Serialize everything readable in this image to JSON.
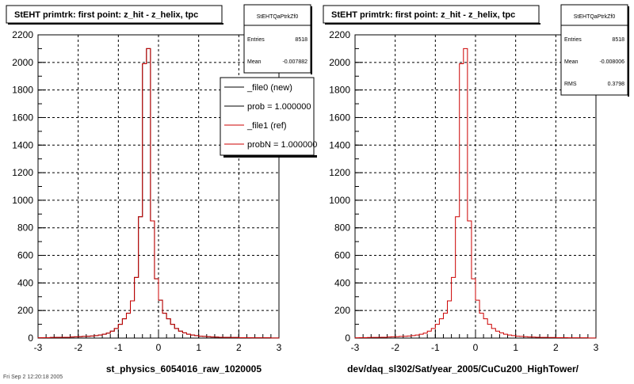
{
  "pads": [
    {
      "title": "StEHT primtrk: first point: z_hit - z_helix, tpc",
      "stats": {
        "name": "StEHTQaPtrkZf0",
        "rows": [
          {
            "label": "Entries",
            "value": "8518"
          },
          {
            "label": "Mean",
            "value": "-0.007882"
          }
        ]
      },
      "legend": [
        {
          "label": "_file0 (new)",
          "color": "#000000"
        },
        {
          "label": "prob = 1.000000",
          "color": "#000000"
        },
        {
          "label": "_file1 (ref)",
          "color": "#cc0000"
        },
        {
          "label": "probN = 1.000000",
          "color": "#cc0000"
        }
      ],
      "xtitle": "st_physics_6054016_raw_1020005"
    },
    {
      "title": "StEHT primtrk: first point: z_hit - z_helix, tpc",
      "stats": {
        "name": "StEHTQaPtrkZf0",
        "rows": [
          {
            "label": "Entries",
            "value": "8518"
          },
          {
            "label": "Mean",
            "value": "-0.008006"
          },
          {
            "label": "RMS",
            "value": "0.3798"
          }
        ]
      },
      "legend": [],
      "xtitle": "dev/daq_sl302/Sat/year_2005/CuCu200_HighTower/"
    }
  ],
  "timestamp": "Fri Sep 2 12:20:18 2005",
  "chart_data": [
    {
      "type": "histogram",
      "title": "StEHT primtrk: first point: z_hit - z_helix, tpc",
      "xlabel": "st_physics_6054016_raw_1020005",
      "ylabel": "",
      "xlim": [
        -3,
        3
      ],
      "ylim": [
        0,
        2200
      ],
      "xticks": [
        "-3",
        "-2",
        "-1",
        "0",
        "1",
        "2",
        "3"
      ],
      "yticks": [
        "0",
        "200",
        "400",
        "600",
        "800",
        "1000",
        "1200",
        "1400",
        "1600",
        "1800",
        "2000",
        "2200"
      ],
      "grid": true,
      "legend_position": "top-right",
      "bin_edges": [
        -3.0,
        -2.9,
        -2.8,
        -2.7,
        -2.6,
        -2.5,
        -2.4,
        -2.3,
        -2.2,
        -2.1,
        -2.0,
        -1.9,
        -1.8,
        -1.7,
        -1.6,
        -1.5,
        -1.4,
        -1.3,
        -1.2,
        -1.1,
        -1.0,
        -0.9,
        -0.8,
        -0.7,
        -0.6,
        -0.5,
        -0.4,
        -0.3,
        -0.2,
        -0.1,
        0.0,
        0.1,
        0.2,
        0.3,
        0.4,
        0.5,
        0.6,
        0.7,
        0.8,
        0.9,
        1.0,
        1.1,
        1.2,
        1.3,
        1.4,
        1.5,
        1.6,
        1.7,
        1.8,
        1.9,
        2.0,
        2.1,
        2.2,
        2.3,
        2.4,
        2.5,
        2.6,
        2.7,
        2.8,
        2.9,
        3.0
      ],
      "series": [
        {
          "name": "_file0 (new)",
          "color": "#000000",
          "values": [
            2,
            3,
            3,
            4,
            5,
            5,
            6,
            6,
            8,
            9,
            10,
            12,
            13,
            15,
            18,
            22,
            28,
            36,
            50,
            70,
            100,
            140,
            180,
            270,
            440,
            880,
            1990,
            2100,
            850,
            430,
            275,
            180,
            140,
            100,
            70,
            50,
            38,
            28,
            22,
            18,
            14,
            12,
            10,
            8,
            7,
            6,
            5,
            5,
            4,
            4,
            3,
            3,
            3,
            2,
            2,
            2,
            2,
            2,
            1,
            1
          ]
        },
        {
          "name": "_file1 (ref)",
          "color": "#cc0000",
          "values": [
            2,
            3,
            3,
            4,
            5,
            5,
            6,
            6,
            8,
            9,
            10,
            12,
            13,
            15,
            18,
            22,
            28,
            36,
            50,
            70,
            100,
            140,
            180,
            270,
            440,
            880,
            1990,
            2100,
            850,
            430,
            275,
            180,
            140,
            100,
            70,
            50,
            38,
            28,
            22,
            18,
            14,
            12,
            10,
            8,
            7,
            6,
            5,
            5,
            4,
            4,
            3,
            3,
            3,
            2,
            2,
            2,
            2,
            2,
            1,
            1
          ]
        }
      ]
    },
    {
      "type": "histogram",
      "title": "StEHT primtrk: first point: z_hit - z_helix, tpc",
      "xlabel": "dev/daq_sl302/Sat/year_2005/CuCu200_HighTower/",
      "ylabel": "",
      "xlim": [
        -3,
        3
      ],
      "ylim": [
        0,
        2200
      ],
      "xticks": [
        "-3",
        "-2",
        "-1",
        "0",
        "1",
        "2",
        "3"
      ],
      "yticks": [
        "0",
        "200",
        "400",
        "600",
        "800",
        "1000",
        "1200",
        "1400",
        "1600",
        "1800",
        "2000",
        "2200"
      ],
      "grid": true,
      "bin_edges": [
        -3.0,
        -2.9,
        -2.8,
        -2.7,
        -2.6,
        -2.5,
        -2.4,
        -2.3,
        -2.2,
        -2.1,
        -2.0,
        -1.9,
        -1.8,
        -1.7,
        -1.6,
        -1.5,
        -1.4,
        -1.3,
        -1.2,
        -1.1,
        -1.0,
        -0.9,
        -0.8,
        -0.7,
        -0.6,
        -0.5,
        -0.4,
        -0.3,
        -0.2,
        -0.1,
        0.0,
        0.1,
        0.2,
        0.3,
        0.4,
        0.5,
        0.6,
        0.7,
        0.8,
        0.9,
        1.0,
        1.1,
        1.2,
        1.3,
        1.4,
        1.5,
        1.6,
        1.7,
        1.8,
        1.9,
        2.0,
        2.1,
        2.2,
        2.3,
        2.4,
        2.5,
        2.6,
        2.7,
        2.8,
        2.9,
        3.0
      ],
      "series": [
        {
          "color": "#cc0000",
          "values": [
            2,
            3,
            3,
            4,
            5,
            5,
            6,
            6,
            8,
            9,
            10,
            12,
            13,
            15,
            18,
            22,
            28,
            36,
            50,
            70,
            100,
            140,
            180,
            270,
            440,
            880,
            1990,
            2100,
            850,
            430,
            275,
            180,
            140,
            100,
            70,
            50,
            38,
            28,
            22,
            18,
            14,
            12,
            10,
            8,
            7,
            6,
            5,
            5,
            4,
            4,
            3,
            3,
            3,
            2,
            2,
            2,
            2,
            2,
            1,
            1
          ]
        }
      ]
    }
  ]
}
